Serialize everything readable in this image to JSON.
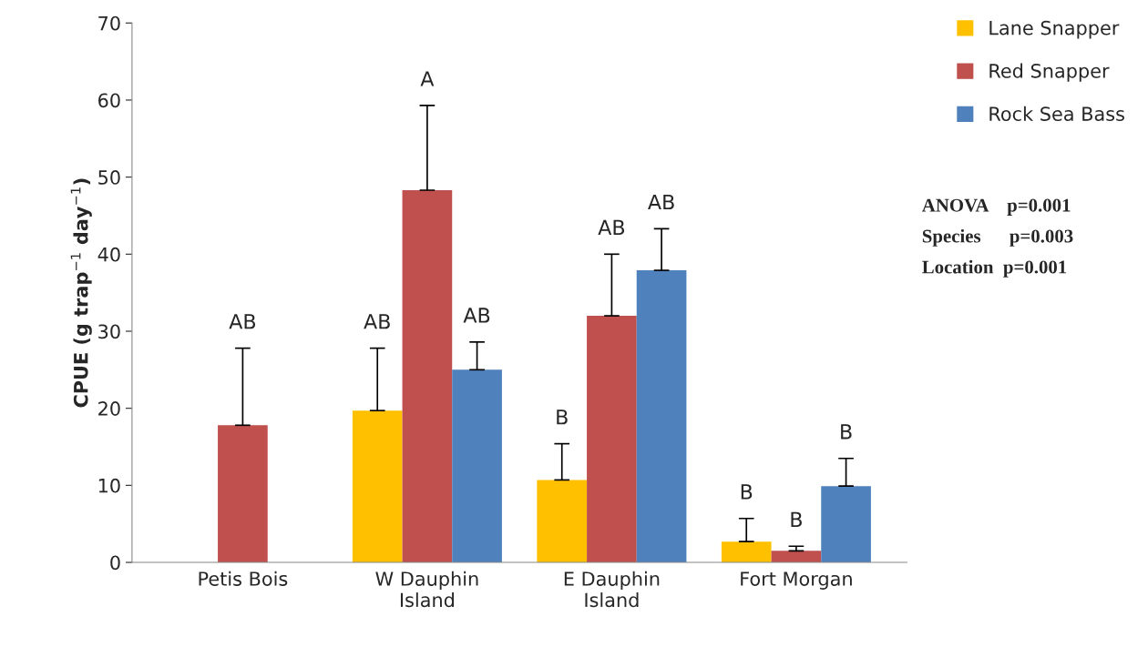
{
  "chart_data": {
    "type": "bar",
    "ylabel": "CPUE (g trap$^{−1}$ day$^{−1}$)",
    "categories": [
      "Petis Bois",
      "W Dauphin\nIsland",
      "E Dauphin\nIsland",
      "Fort Morgan"
    ],
    "series": [
      {
        "name": "Lane Snapper",
        "color": "#ffc000",
        "values": [
          null,
          19.7,
          10.7,
          2.7
        ],
        "errors": [
          null,
          [
            19.7,
            27.8
          ],
          [
            10.7,
            15.4
          ],
          [
            2.7,
            5.7
          ]
        ]
      },
      {
        "name": "Red Snapper",
        "color": "#c0504d",
        "values": [
          17.8,
          48.3,
          32.0,
          1.5
        ],
        "errors": [
          [
            17.8,
            27.8
          ],
          [
            48.3,
            59.3
          ],
          [
            32.0,
            40.0
          ],
          [
            1.5,
            2.1
          ]
        ]
      },
      {
        "name": "Rock Sea Bass",
        "color": "#4f81bd",
        "values": [
          null,
          25.0,
          37.9,
          9.9
        ],
        "errors": [
          null,
          [
            25.0,
            28.6
          ],
          [
            37.9,
            43.3
          ],
          [
            9.9,
            13.5
          ]
        ]
      }
    ],
    "ylim": [
      0,
      70
    ],
    "yticks": [
      0,
      10,
      20,
      30,
      40,
      50,
      60,
      70
    ],
    "grid": false,
    "legend": "top right",
    "annotations": [
      "AB",
      "AB",
      "A",
      "AB",
      "B",
      "AB",
      "AB",
      "B",
      "B",
      "B",
      "ANOVA    p=0.001",
      "Species      p=0.003",
      "Location  p=0.001"
    ]
  }
}
